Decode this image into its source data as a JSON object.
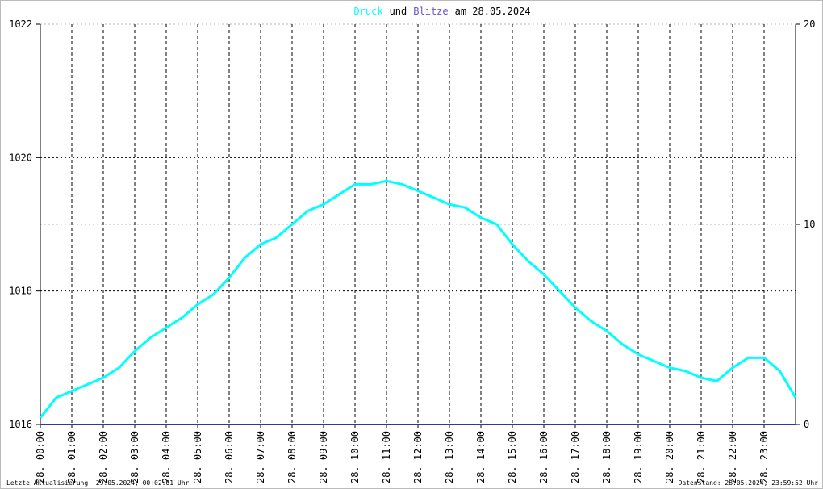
{
  "chart_data": {
    "type": "line",
    "title_parts": [
      "und",
      "am 28.05.2024"
    ],
    "footer_left": "Letzte Aktualisierung: 29.05.2024, 00:02:01 Uhr",
    "footer_right": "Datenstand: 28.05.2024, 23:59:52 Uhr",
    "x": [
      0,
      0.5,
      1,
      1.5,
      2,
      2.5,
      3,
      3.5,
      4,
      4.5,
      5,
      5.5,
      6,
      6.5,
      7,
      7.5,
      8,
      8.5,
      9,
      9.5,
      10,
      10.5,
      11,
      11.5,
      12,
      12.5,
      13,
      13.5,
      14,
      14.5,
      15,
      15.5,
      16,
      16.5,
      17,
      17.5,
      18,
      18.5,
      19,
      19.5,
      20,
      20.5,
      21,
      21.5,
      22,
      22.5,
      23,
      23.5,
      24
    ],
    "series": [
      {
        "name": "Druck",
        "color": "#00ffff",
        "axis": "y",
        "values": [
          1016.1,
          1016.4,
          1016.5,
          1016.6,
          1016.7,
          1016.85,
          1017.1,
          1017.3,
          1017.45,
          1017.6,
          1017.8,
          1017.95,
          1018.2,
          1018.5,
          1018.7,
          1018.8,
          1019.0,
          1019.2,
          1019.3,
          1019.45,
          1019.6,
          1019.6,
          1019.65,
          1019.6,
          1019.5,
          1019.4,
          1019.3,
          1019.25,
          1019.1,
          1019.0,
          1018.7,
          1018.45,
          1018.25,
          1018.0,
          1017.75,
          1017.55,
          1017.4,
          1017.2,
          1017.05,
          1016.95,
          1016.85,
          1016.8,
          1016.7,
          1016.65,
          1016.85,
          1017.0,
          1017.0,
          1016.8,
          1016.4
        ]
      },
      {
        "name": "Blitze",
        "color": "#3333aa",
        "axis": "y2",
        "values": [
          0,
          0,
          0,
          0,
          0,
          0,
          0,
          0,
          0,
          0,
          0,
          0,
          0,
          0,
          0,
          0,
          0,
          0,
          0,
          0,
          0,
          0,
          0,
          0,
          0,
          0,
          0,
          0,
          0,
          0,
          0,
          0,
          0,
          0,
          0,
          0,
          0,
          0,
          0,
          0,
          0,
          0,
          0,
          0,
          0,
          0,
          0,
          0,
          0
        ]
      }
    ],
    "xlim": [
      0,
      24
    ],
    "xticks": [
      {
        "value": 0,
        "label": "28. 00:00"
      },
      {
        "value": 1,
        "label": "28. 01:00"
      },
      {
        "value": 2,
        "label": "28. 02:00"
      },
      {
        "value": 3,
        "label": "28. 03:00"
      },
      {
        "value": 4,
        "label": "28. 04:00"
      },
      {
        "value": 5,
        "label": "28. 05:00"
      },
      {
        "value": 6,
        "label": "28. 06:00"
      },
      {
        "value": 7,
        "label": "28. 07:00"
      },
      {
        "value": 8,
        "label": "28. 08:00"
      },
      {
        "value": 9,
        "label": "28. 09:00"
      },
      {
        "value": 10,
        "label": "28. 10:00"
      },
      {
        "value": 11,
        "label": "28. 11:00"
      },
      {
        "value": 12,
        "label": "28. 12:00"
      },
      {
        "value": 13,
        "label": "28. 13:00"
      },
      {
        "value": 14,
        "label": "28. 14:00"
      },
      {
        "value": 15,
        "label": "28. 15:00"
      },
      {
        "value": 16,
        "label": "28. 16:00"
      },
      {
        "value": 17,
        "label": "28. 17:00"
      },
      {
        "value": 18,
        "label": "28. 18:00"
      },
      {
        "value": 19,
        "label": "28. 19:00"
      },
      {
        "value": 20,
        "label": "28. 20:00"
      },
      {
        "value": 21,
        "label": "28. 21:00"
      },
      {
        "value": 22,
        "label": "28. 22:00"
      },
      {
        "value": 23,
        "label": "28. 23:00"
      }
    ],
    "ylim": [
      1016,
      1022
    ],
    "yticks": [
      1016,
      1018,
      1020,
      1022
    ],
    "y2lim": [
      0,
      20
    ],
    "y2ticks": [
      0,
      10,
      20
    ],
    "grid": true
  }
}
